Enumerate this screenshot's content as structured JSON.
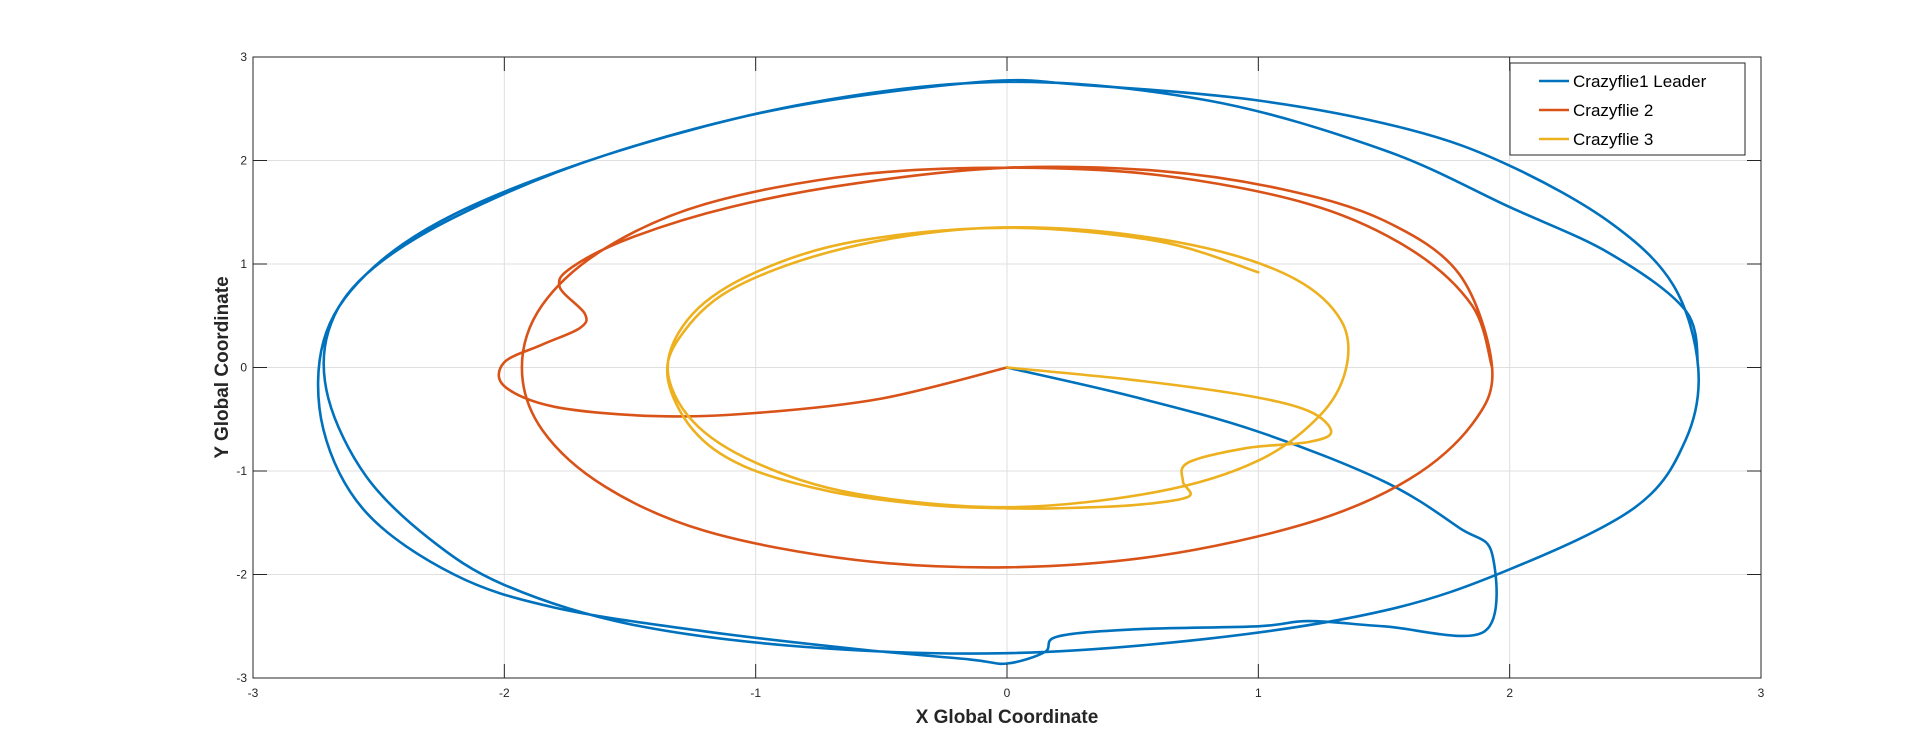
{
  "chart_data": {
    "type": "line",
    "title": "",
    "xlabel": "X Global Coordinate",
    "ylabel": "Y Global Coordinate",
    "xlim": [
      -3,
      3
    ],
    "ylim": [
      -3,
      3
    ],
    "xticks": [
      -3,
      -2,
      -1,
      0,
      1,
      2,
      3
    ],
    "yticks": [
      -3,
      -2,
      -1,
      0,
      1,
      2,
      3
    ],
    "grid": true,
    "legend_position": "top-right",
    "series": [
      {
        "name": "Crazyflie1 Leader",
        "color": "#0072BD",
        "x": [
          0,
          0.5,
          1.0,
          1.5,
          1.8,
          1.93,
          1.9,
          1.5,
          1.2,
          1.0,
          0.5,
          0.2,
          0.15,
          0,
          -0.15,
          -0.6,
          -1.2,
          -1.8,
          -2.2,
          -2.55,
          -2.72,
          -2.72,
          -2.55,
          -2.2,
          -1.6,
          -0.9,
          -0.1,
          0.3,
          1.0,
          1.6,
          2.0,
          2.4,
          2.65,
          2.75,
          2.7,
          2.5,
          2.0,
          1.5,
          0.8,
          0,
          -0.8,
          -1.5,
          -2.0,
          -2.3,
          -2.55,
          -2.7,
          -2.7,
          -2.55,
          -2.2,
          -1.6,
          -0.8,
          0,
          0.8,
          1.5,
          2.0,
          2.4,
          2.7,
          2.75
        ],
        "y": [
          0,
          -0.28,
          -0.62,
          -1.1,
          -1.55,
          -1.8,
          -2.55,
          -2.5,
          -2.45,
          -2.5,
          -2.53,
          -2.6,
          -2.75,
          -2.86,
          -2.82,
          -2.72,
          -2.55,
          -2.32,
          -2.0,
          -1.4,
          -0.6,
          0.25,
          0.9,
          1.48,
          2.05,
          2.5,
          2.76,
          2.73,
          2.58,
          2.3,
          1.95,
          1.4,
          0.8,
          0,
          -0.7,
          -1.35,
          -1.95,
          -2.35,
          -2.62,
          -2.76,
          -2.7,
          -2.48,
          -2.1,
          -1.65,
          -1.05,
          -0.3,
          0.35,
          0.9,
          1.45,
          2.05,
          2.55,
          2.76,
          2.58,
          2.1,
          1.55,
          1.1,
          0.55,
          0
        ]
      },
      {
        "name": "Crazyflie 2",
        "color": "#D95319",
        "x": [
          0,
          -0.5,
          -1.0,
          -1.4,
          -1.8,
          -2.0,
          -2.0,
          -1.85,
          -1.7,
          -1.68,
          -1.78,
          -1.73,
          -1.5,
          -1.1,
          -0.6,
          0,
          0.6,
          1.1,
          1.5,
          1.8,
          1.93,
          1.85,
          1.6,
          1.2,
          0.6,
          0,
          -0.6,
          -1.2,
          -1.6,
          -1.85,
          -1.93,
          -1.85,
          -1.6,
          -1.2,
          -0.6,
          0,
          0.6,
          1.2,
          1.6,
          1.85,
          1.93
        ],
        "y": [
          0,
          -0.3,
          -0.44,
          -0.47,
          -0.38,
          -0.18,
          0.05,
          0.22,
          0.38,
          0.52,
          0.78,
          0.97,
          1.25,
          1.55,
          1.78,
          1.93,
          1.9,
          1.72,
          1.42,
          0.9,
          0,
          -0.55,
          -1.08,
          -1.5,
          -1.82,
          -1.93,
          -1.86,
          -1.58,
          -1.15,
          -0.6,
          0,
          0.6,
          1.15,
          1.58,
          1.86,
          1.93,
          1.86,
          1.58,
          1.15,
          0.6,
          0
        ]
      },
      {
        "name": "Crazyflie 3",
        "color": "#EDB120",
        "x": [
          0,
          0.5,
          0.95,
          1.2,
          1.29,
          1.2,
          0.95,
          0.72,
          0.7,
          0.72,
          0.5,
          0.2,
          0,
          -0.3,
          -0.7,
          -1.05,
          -1.25,
          -1.35,
          -1.3,
          -1.1,
          -0.7,
          -0.2,
          0.3,
          0.8,
          1.15,
          1.33,
          1.35,
          1.25,
          1.0,
          0.6,
          0,
          -0.6,
          -1.0,
          -1.25,
          -1.35,
          -1.25,
          -1.0,
          -0.6,
          0,
          0.6,
          1.0
        ],
        "y": [
          0,
          -0.12,
          -0.27,
          -0.42,
          -0.62,
          -0.72,
          -0.78,
          -0.92,
          -1.1,
          -1.25,
          -1.33,
          -1.36,
          -1.36,
          -1.33,
          -1.2,
          -0.95,
          -0.6,
          -0.1,
          0.3,
          0.75,
          1.12,
          1.33,
          1.33,
          1.15,
          0.85,
          0.45,
          0,
          -0.45,
          -0.9,
          -1.2,
          -1.35,
          -1.22,
          -0.92,
          -0.52,
          0,
          0.52,
          0.92,
          1.22,
          1.35,
          1.22,
          0.92
        ]
      }
    ]
  }
}
